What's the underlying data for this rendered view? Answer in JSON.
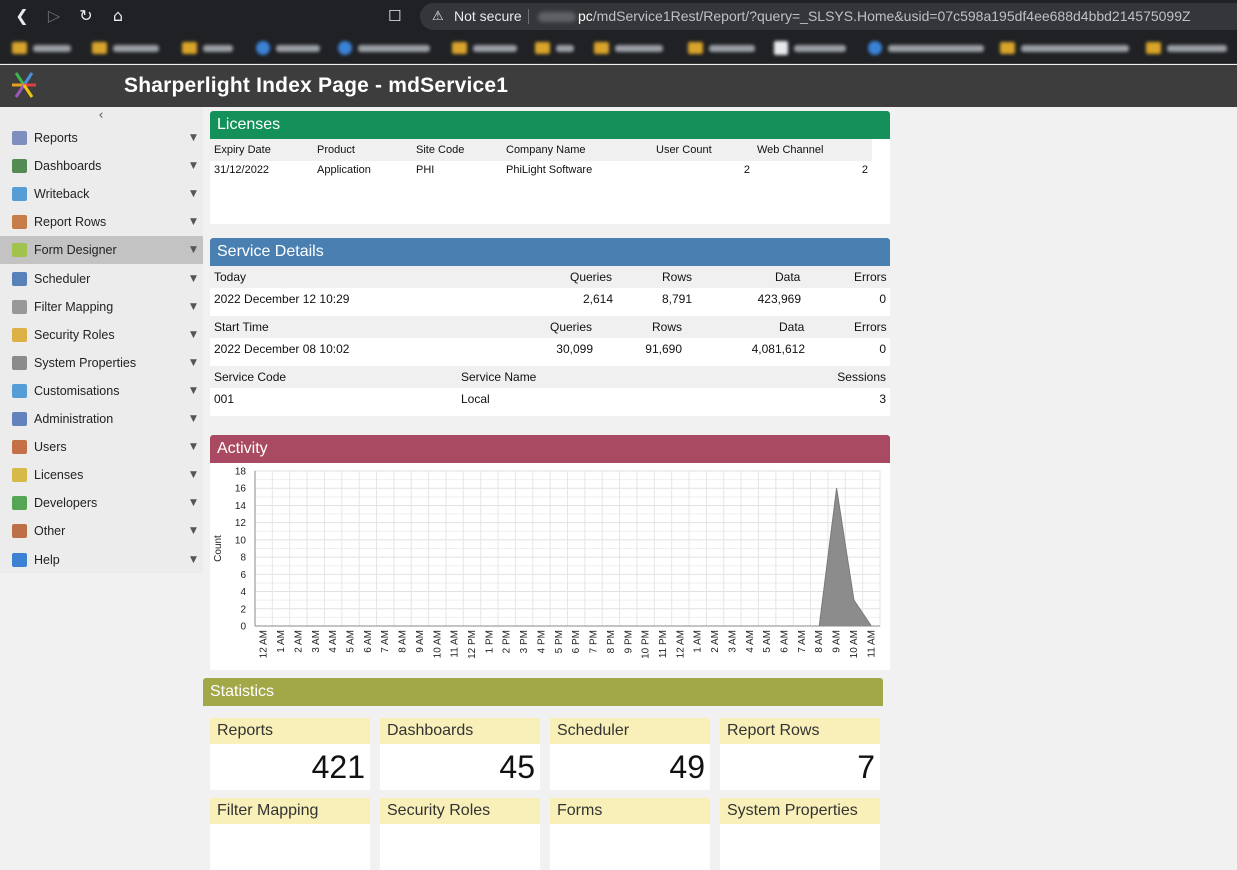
{
  "browser": {
    "not_secure": "Not secure",
    "url_path_host_suffix": "pc",
    "url_path": "/mdService1Rest/Report/?query=_SLSYS.Home&usid=07c598a195df4ee688d4bbd214575099Z"
  },
  "app": {
    "title": "Sharperlight Index Page - mdService1"
  },
  "sidebar": {
    "items": [
      {
        "label": "Reports",
        "icon": "reports-icon",
        "color": "#6b7fb5"
      },
      {
        "label": "Dashboards",
        "icon": "dashboards-icon",
        "color": "#3a7a3a"
      },
      {
        "label": "Writeback",
        "icon": "writeback-icon",
        "color": "#3d8fd1"
      },
      {
        "label": "Report Rows",
        "icon": "report-rows-icon",
        "color": "#c06a2a"
      },
      {
        "label": "Form Designer",
        "icon": "form-designer-icon",
        "color": "#9cc23a"
      },
      {
        "label": "Scheduler",
        "icon": "scheduler-icon",
        "color": "#3c6fb0"
      },
      {
        "label": "Filter Mapping",
        "icon": "filter-mapping-icon",
        "color": "#8a8a8a"
      },
      {
        "label": "Security Roles",
        "icon": "security-roles-icon",
        "color": "#d9a42a"
      },
      {
        "label": "System Properties",
        "icon": "system-properties-icon",
        "color": "#7a7a7a"
      },
      {
        "label": "Customisations",
        "icon": "customisations-icon",
        "color": "#3d8fd1"
      },
      {
        "label": "Administration",
        "icon": "administration-icon",
        "color": "#4a6fb5"
      },
      {
        "label": "Users",
        "icon": "users-icon",
        "color": "#c05a2a"
      },
      {
        "label": "Licenses",
        "icon": "licenses-icon",
        "color": "#d4b02a"
      },
      {
        "label": "Developers",
        "icon": "developers-icon",
        "color": "#3a9a3a"
      },
      {
        "label": "Other",
        "icon": "other-icon",
        "color": "#b55a2a"
      },
      {
        "label": "Help",
        "icon": "help-icon",
        "color": "#1f6fd1"
      }
    ],
    "active_index": 4
  },
  "licenses": {
    "title": "Licenses",
    "color": "#14915a",
    "headers": [
      "Expiry Date",
      "Product",
      "Site Code",
      "Company Name",
      "User Count",
      "Web Channel"
    ],
    "rows": [
      [
        "31/12/2022",
        "Application",
        "PHI",
        "PhiLight Software",
        "2",
        "2"
      ]
    ]
  },
  "service_details": {
    "title": "Service Details",
    "color": "#4a80b1",
    "today": {
      "headers": [
        "Today",
        "Queries",
        "Rows",
        "Data",
        "Errors"
      ],
      "values": [
        "2022 December 12 10:29",
        "2,614",
        "8,791",
        "423,969",
        "0"
      ]
    },
    "start": {
      "headers": [
        "Start Time",
        "Queries",
        "Rows",
        "Data",
        "Errors"
      ],
      "values": [
        "2022 December 08 10:02",
        "30,099",
        "91,690",
        "4,081,612",
        "0"
      ]
    },
    "service": {
      "headers": [
        "Service Code",
        "Service Name",
        "Sessions"
      ],
      "values": [
        "001",
        "Local",
        "3"
      ]
    }
  },
  "activity": {
    "title": "Activity",
    "color": "#a94a62"
  },
  "chart_data": {
    "type": "area",
    "ylabel": "Count",
    "ylim": [
      0,
      18
    ],
    "yticks": [
      0,
      2,
      4,
      6,
      8,
      10,
      12,
      14,
      16,
      18
    ],
    "grid": true,
    "x": [
      "12 AM",
      "1 AM",
      "2 AM",
      "3 AM",
      "4 AM",
      "5 AM",
      "6 AM",
      "7 AM",
      "8 AM",
      "9 AM",
      "10 AM",
      "11 AM",
      "12 PM",
      "1 PM",
      "2 PM",
      "3 PM",
      "4 PM",
      "5 PM",
      "6 PM",
      "7 PM",
      "8 PM",
      "9 PM",
      "10 PM",
      "11 PM",
      "12 AM",
      "1 AM",
      "2 AM",
      "3 AM",
      "4 AM",
      "5 AM",
      "6 AM",
      "7 AM",
      "8 AM",
      "9 AM",
      "10 AM",
      "11 AM"
    ],
    "values": [
      0,
      0,
      0,
      0,
      0,
      0,
      0,
      0,
      0,
      0,
      0,
      0,
      0,
      0,
      0,
      0,
      0,
      0,
      0,
      0,
      0,
      0,
      0,
      0,
      0,
      0,
      0,
      0,
      0,
      0,
      0,
      0,
      0,
      16,
      3,
      0
    ],
    "fill": "#8c8c8c"
  },
  "statistics": {
    "title": "Statistics",
    "cards": [
      {
        "label": "Reports",
        "value": "421"
      },
      {
        "label": "Dashboards",
        "value": "45"
      },
      {
        "label": "Scheduler",
        "value": "49"
      },
      {
        "label": "Report Rows",
        "value": "7"
      },
      {
        "label": "Filter Mapping",
        "value": ""
      },
      {
        "label": "Security Roles",
        "value": ""
      },
      {
        "label": "Forms",
        "value": ""
      },
      {
        "label": "System Properties",
        "value": ""
      }
    ]
  }
}
